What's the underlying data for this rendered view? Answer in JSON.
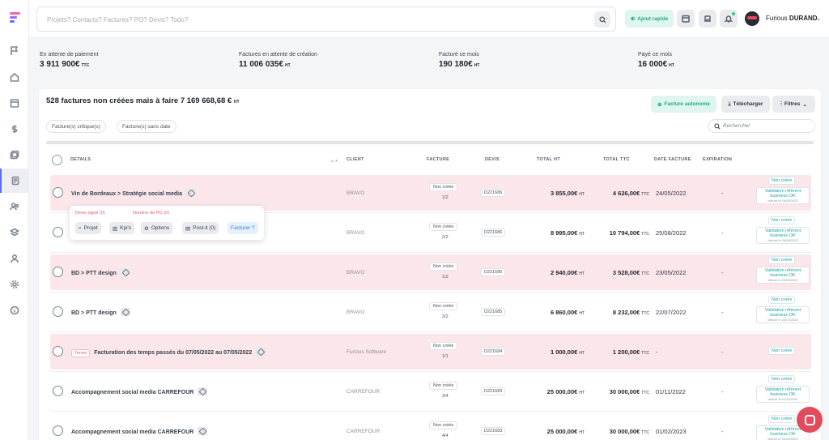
{
  "search": {
    "placeholder": "Projets? Contacts? Factures? PO? Devis? Todo?"
  },
  "topbar": {
    "quick_add": "Ajout rapide",
    "user_first": "Furious",
    "user_last": "DURAND"
  },
  "stats": [
    {
      "label": "En attente de paiement",
      "value": "3 911 900€",
      "unit": "TTC"
    },
    {
      "label": "Factures en attente de création",
      "value": "11 006 035€",
      "unit": "HT"
    },
    {
      "label": "Facturé ce mois",
      "value": "190 180€",
      "unit": "HT"
    },
    {
      "label": "Payé ce mois",
      "value": "16 000€",
      "unit": "HT"
    }
  ],
  "card": {
    "title": "528 factures non créées mais à faire 7 169 668,68 €",
    "title_unit": "HT",
    "btn_autonome": "Facture autonome",
    "btn_download": "Télécharger",
    "btn_filters": "Filtres",
    "chip1": "Facture(s) critique(s)",
    "chip2": "Facture(s) sans date",
    "search_placeholder": "Rechercher"
  },
  "columns": {
    "details": "DETAILS",
    "client": "CLIENT",
    "facture": "FACTURE",
    "devis": "DEVIS",
    "total_ht": "TOTAL HT",
    "total_ttc": "TOTAL TTC",
    "date": "DATE FACTURE",
    "expiration": "EXPIRATION"
  },
  "rows": [
    {
      "title": "Vin de Bordeaux > Stratégie social media",
      "terme": "",
      "client": "BRAVO",
      "status": "Non créée",
      "num": "1/2",
      "devis": "D221686",
      "ht": "3 855,00€",
      "ttc": "4 626,00€",
      "date": "24/05/2022",
      "exp": "-",
      "state": "Non créée",
      "valid": "Validation référent business OK",
      "valid_date": "clôturé le 24/05/2022",
      "pink": true
    },
    {
      "title": "",
      "terme": "",
      "client": "BRAVO",
      "status": "Non créée",
      "num": "2/2",
      "devis": "D221686",
      "ht": "8 995,00€",
      "ttc": "10 794,00€",
      "date": "25/08/2022",
      "exp": "-",
      "state": "Non créée",
      "valid": "Validation référent business OK",
      "valid_date": "clôturé le 25/08/2022",
      "pink": false
    },
    {
      "title": "BD > PTT design",
      "terme": "",
      "client": "BRAVO",
      "status": "Non créée",
      "num": "1/2",
      "devis": "D221685",
      "ht": "2 940,00€",
      "ttc": "3 528,00€",
      "date": "23/05/2022",
      "exp": "-",
      "state": "Non créée",
      "valid": "Validation référent business OK",
      "valid_date": "clôturé le 23/05/2022",
      "pink": true
    },
    {
      "title": "BD > PTT design",
      "terme": "",
      "client": "BRAVO",
      "status": "Non créée",
      "num": "2/2",
      "devis": "D221685",
      "ht": "6 860,00€",
      "ttc": "8 232,00€",
      "date": "22/07/2022",
      "exp": "-",
      "state": "Non créée",
      "valid": "Validation référent business OK",
      "valid_date": "clôturé le 22/07/2022",
      "pink": false
    },
    {
      "title": "Facturation des temps passés du 07/05/2022 au 07/05/2022",
      "terme": "Terme",
      "client": "Furious Software",
      "status": "Non créée",
      "num": "1/1",
      "devis": "D221684",
      "ht": "1 000,00€",
      "ttc": "1 200,00€",
      "date": "-",
      "exp": "-",
      "state": "Non créée",
      "valid": "",
      "valid_date": "",
      "pink": true
    },
    {
      "title": "Accompagnement social media CARREFOUR",
      "terme": "",
      "client": "CARREFOUR",
      "status": "Non créée",
      "num": "3/4",
      "devis": "D221683",
      "ht": "25 000,00€",
      "ttc": "30 000,00€",
      "date": "01/11/2022",
      "exp": "-",
      "state": "Non créée",
      "valid": "Validation référent business OK",
      "valid_date": "clôturé le 01/11/2022",
      "pink": false
    },
    {
      "title": "Accompagnement social media CARREFOUR",
      "terme": "",
      "client": "CARREFOUR",
      "status": "Non créée",
      "num": "4/4",
      "devis": "D221683",
      "ht": "25 000,00€",
      "ttc": "30 000,00€",
      "date": "01/02/2023",
      "exp": "-",
      "state": "Non créée",
      "valid": "Validation référent business OK",
      "valid_date": "clôturé le 01/02/2023",
      "pink": false
    }
  ],
  "units": {
    "ht": "HT",
    "ttc": "TTC"
  },
  "popup": {
    "devis_signe": "Devis signé (0)",
    "numero_po": "Numéro de PO (0)",
    "projet": "Projet",
    "kpis": "Kpi's",
    "options": "Options",
    "postit": "Post-it (0)",
    "facturer": "Facturer ?"
  }
}
